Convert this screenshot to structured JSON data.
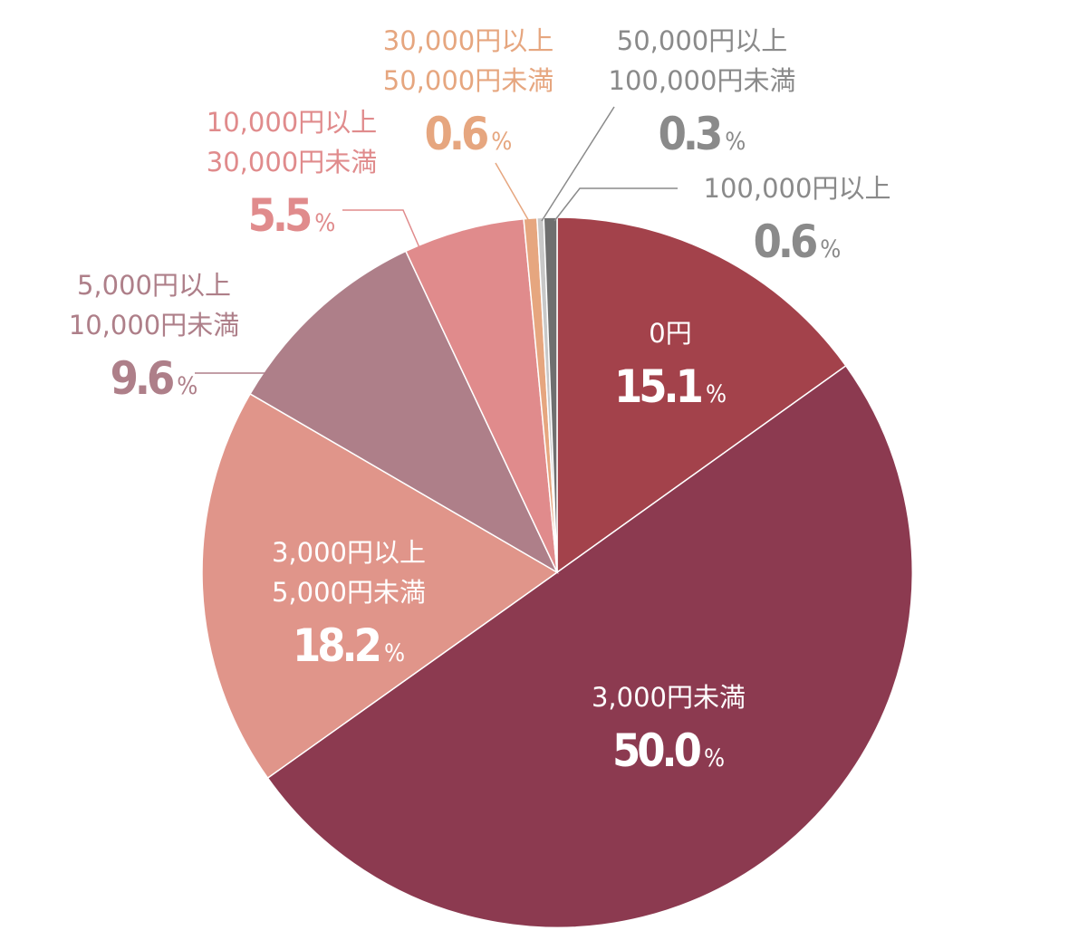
{
  "chart_data": {
    "type": "pie",
    "unit": "%",
    "start_angle_deg": 0,
    "direction": "clockwise",
    "slices": [
      {
        "label_lines": [
          "0円"
        ],
        "value": 15.1,
        "value_text": "15.1",
        "color": "#a3424b",
        "label_color": "#ffffff"
      },
      {
        "label_lines": [
          "3,000円未満"
        ],
        "value": 50.0,
        "value_text": "50.0",
        "color": "#8c3a50",
        "label_color": "#ffffff"
      },
      {
        "label_lines": [
          "3,000円以上",
          "5,000円未満"
        ],
        "value": 18.2,
        "value_text": "18.2",
        "color": "#e0958a",
        "label_color": "#ffffff"
      },
      {
        "label_lines": [
          "5,000円以上",
          "10,000円未満"
        ],
        "value": 9.6,
        "value_text": "9.6",
        "color": "#ae7f89",
        "label_color": "#ae7f89"
      },
      {
        "label_lines": [
          "10,000円以上",
          "30,000円未満"
        ],
        "value": 5.5,
        "value_text": "5.5",
        "color": "#e08b8c",
        "label_color": "#e08b8c"
      },
      {
        "label_lines": [
          "30,000円以上",
          "50,000円未満"
        ],
        "value": 0.6,
        "value_text": "0.6",
        "color": "#e6a67f",
        "label_color": "#e6a67f"
      },
      {
        "label_lines": [
          "50,000円以上",
          "100,000円未満"
        ],
        "value": 0.3,
        "value_text": "0.3",
        "color": "#c8c8c8",
        "label_color": "#8a8a8a"
      },
      {
        "label_lines": [
          "100,000円以上"
        ],
        "value": 0.6,
        "value_text": "0.6",
        "color": "#6f6f6f",
        "label_color": "#8a8a8a"
      }
    ]
  }
}
